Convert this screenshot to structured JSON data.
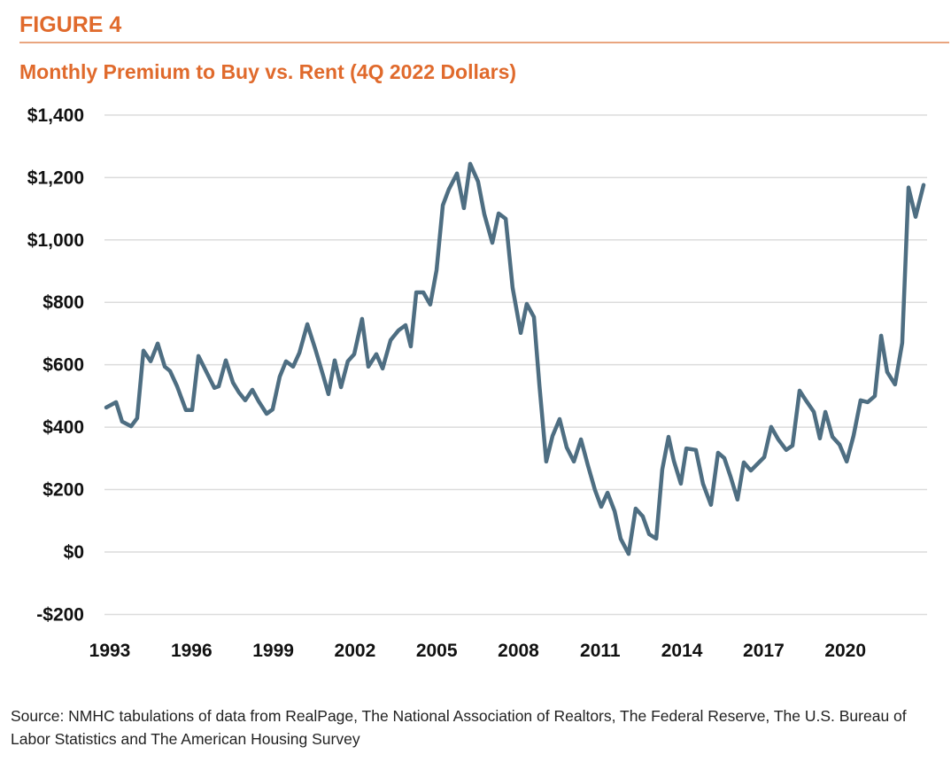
{
  "figure_label": "FIGURE 4",
  "source": "Source: NMHC tabulations of data from RealPage, The National Association of Realtors, The Federal Reserve, The U.S. Bureau of Labor Statistics and The American Housing Survey",
  "chart_data": {
    "type": "line",
    "title": "Monthly Premium to Buy vs. Rent (4Q 2022 Dollars)",
    "xlabel": "",
    "ylabel": "",
    "ylim": [
      -200,
      1400
    ],
    "xlim": [
      1993,
      2022.9
    ],
    "grid": true,
    "line_color": "#4e6e82",
    "accent_color": "#e06a2c",
    "y_ticks": [
      -200,
      0,
      200,
      400,
      600,
      800,
      1000,
      1200,
      1400
    ],
    "y_tick_labels": [
      "-$200",
      "$0",
      "$200",
      "$400",
      "$600",
      "$800",
      "$1,000",
      "$1,200",
      "$1,400"
    ],
    "x_tick_labels": [
      "1993",
      "1996",
      "1999",
      "2002",
      "2005",
      "2008",
      "2011",
      "2014",
      "2017",
      "2020"
    ],
    "series": [
      {
        "name": "Monthly Premium to Buy vs. Rent",
        "x": [
          1993.0,
          1993.36,
          1993.58,
          1993.91,
          1994.13,
          1994.36,
          1994.62,
          1994.88,
          1995.14,
          1995.33,
          1995.59,
          1995.91,
          1996.14,
          1996.37,
          1996.66,
          1996.95,
          1997.11,
          1997.37,
          1997.63,
          1997.85,
          1998.08,
          1998.34,
          1998.57,
          1998.86,
          1999.08,
          1999.34,
          1999.57,
          1999.83,
          2000.06,
          2000.35,
          2000.64,
          2000.93,
          2001.12,
          2001.35,
          2001.58,
          2001.83,
          2002.06,
          2002.35,
          2002.58,
          2002.87,
          2003.1,
          2003.39,
          2003.68,
          2003.94,
          2004.13,
          2004.33,
          2004.59,
          2004.84,
          2005.07,
          2005.3,
          2005.52,
          2005.82,
          2006.07,
          2006.3,
          2006.59,
          2006.82,
          2007.11,
          2007.34,
          2007.6,
          2007.85,
          2008.15,
          2008.37,
          2008.63,
          2008.83,
          2009.08,
          2009.31,
          2009.57,
          2009.83,
          2010.09,
          2010.35,
          2010.61,
          2010.86,
          2011.09,
          2011.32,
          2011.58,
          2011.8,
          2012.09,
          2012.35,
          2012.61,
          2012.84,
          2013.1,
          2013.32,
          2013.55,
          2013.74,
          2014.0,
          2014.2,
          2014.55,
          2014.81,
          2015.1,
          2015.36,
          2015.59,
          2015.82,
          2016.07,
          2016.3,
          2016.56,
          2016.82,
          2017.05,
          2017.3,
          2017.56,
          2017.85,
          2018.08,
          2018.34,
          2018.57,
          2018.86,
          2019.08,
          2019.28,
          2019.54,
          2019.8,
          2020.06,
          2020.31,
          2020.57,
          2020.83,
          2021.09,
          2021.32,
          2021.54,
          2021.83,
          2022.09,
          2022.32,
          2022.58,
          2022.87
        ],
        "values": [
          463,
          480,
          418,
          403,
          429,
          645,
          611,
          668,
          594,
          580,
          531,
          455,
          455,
          628,
          577,
          526,
          531,
          614,
          543,
          511,
          486,
          520,
          483,
          443,
          457,
          562,
          611,
          594,
          639,
          730,
          650,
          565,
          506,
          614,
          528,
          611,
          634,
          747,
          594,
          634,
          588,
          679,
          710,
          727,
          659,
          832,
          832,
          793,
          903,
          1111,
          1162,
          1213,
          1102,
          1244,
          1187,
          1082,
          991,
          1085,
          1068,
          847,
          702,
          795,
          753,
          537,
          290,
          372,
          426,
          335,
          290,
          361,
          276,
          199,
          145,
          190,
          131,
          43,
          -6,
          139,
          114,
          57,
          43,
          264,
          369,
          293,
          219,
          332,
          327,
          219,
          151,
          318,
          301,
          241,
          168,
          287,
          261,
          284,
          304,
          401,
          361,
          327,
          341,
          517,
          486,
          449,
          364,
          449,
          369,
          344,
          290,
          372,
          486,
          480,
          500,
          693,
          577,
          537,
          670,
          1168,
          1074,
          1176
        ]
      }
    ]
  }
}
